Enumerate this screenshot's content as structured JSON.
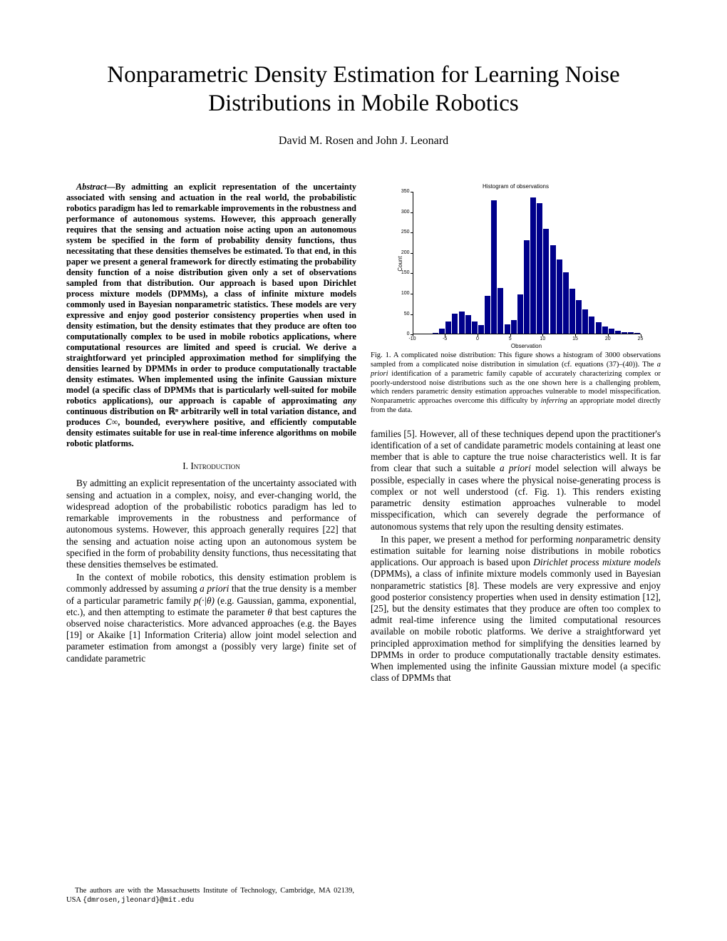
{
  "title": "Nonparametric Density Estimation for Learning Noise Distributions in Mobile Robotics",
  "authors": "David M. Rosen and John J. Leonard",
  "abstract_label": "Abstract",
  "abstract_text": "—By admitting an explicit representation of the uncertainty associated with sensing and actuation in the real world, the probabilistic robotics paradigm has led to remarkable improvements in the robustness and performance of autonomous systems. However, this approach generally requires that the sensing and actuation noise acting upon an autonomous system be specified in the form of probability density functions, thus necessitating that these densities themselves be estimated. To that end, in this paper we present a general framework for directly estimating the probability density function of a noise distribution given only a set of observations sampled from that distribution. Our approach is based upon Dirichlet process mixture models (DPMMs), a class of infinite mixture models commonly used in Bayesian nonparametric statistics. These models are very expressive and enjoy good posterior consistency properties when used in density estimation, but the density estimates that they produce are often too computationally complex to be used in mobile robotics applications, where computational resources are limited and speed is crucial. We derive a straightforward yet principled approximation method for simplifying the densities learned by DPMMs in order to produce computationally tractable density estimates. When implemented using the infinite Gaussian mixture model (a specific class of DPMMs that is particularly well-suited for mobile robotics applications), our approach is capable of approximating ",
  "abstract_text2": " continuous distribution on ℝⁿ arbitrarily well in total variation distance, and produces ",
  "abstract_text2b": ", bounded, everywhere positive, and efficiently computable density estimates suitable for use in real-time inference algorithms on mobile robotic platforms.",
  "abstract_any": "any",
  "abstract_cinf": "C∞",
  "section_intro": "I. Introduction",
  "intro_p1": "By admitting an explicit representation of the uncertainty associated with sensing and actuation in a complex, noisy, and ever-changing world, the widespread adoption of the probabilistic robotics paradigm has led to remarkable improvements in the robustness and performance of autonomous systems. However, this approach generally requires [22] that the sensing and actuation noise acting upon an autonomous system be specified in the form of probability density functions, thus necessitating that these densities themselves be estimated.",
  "intro_p2_a": "In the context of mobile robotics, this density estimation problem is commonly addressed by assuming ",
  "intro_p2_apriori": "a priori",
  "intro_p2_b": " that the true density is a member of a particular parametric family ",
  "intro_p2_math": "p(·|θ)",
  "intro_p2_c": " (e.g. Gaussian, gamma, exponential, etc.), and then attempting to estimate the parameter ",
  "intro_p2_theta": "θ",
  "intro_p2_d": " that best captures the observed noise characteristics. More advanced approaches (e.g. the Bayes [19] or Akaike [1] Information Criteria) allow joint model selection and parameter estimation from amongst a (possibly very large) finite set of candidate parametric",
  "footnote_text_a": "The authors are with the Massachusetts Institute of Technology, Cambridge, MA 02139, USA ",
  "footnote_braces": "{dmrosen,jleonard}@mit.edu",
  "chart": {
    "title": "Histogram of observations",
    "ylabel": "Count",
    "xlabel": "Observation",
    "ylim": [
      0,
      350
    ],
    "xlim": [
      -10,
      25
    ],
    "ytick_step": 50,
    "xtick_step": 5,
    "bar_color": "#00008b",
    "background_color": "#ffffff",
    "bin_width": 1,
    "bins": [
      {
        "x": -7,
        "count": 2
      },
      {
        "x": -6,
        "count": 12
      },
      {
        "x": -5,
        "count": 30
      },
      {
        "x": -4,
        "count": 50
      },
      {
        "x": -3,
        "count": 55
      },
      {
        "x": -2,
        "count": 45
      },
      {
        "x": -1,
        "count": 30
      },
      {
        "x": 0,
        "count": 22
      },
      {
        "x": 1,
        "count": 93
      },
      {
        "x": 2,
        "count": 328
      },
      {
        "x": 3,
        "count": 113
      },
      {
        "x": 4,
        "count": 23
      },
      {
        "x": 5,
        "count": 33
      },
      {
        "x": 6,
        "count": 96
      },
      {
        "x": 7,
        "count": 230
      },
      {
        "x": 8,
        "count": 335
      },
      {
        "x": 9,
        "count": 320
      },
      {
        "x": 10,
        "count": 258
      },
      {
        "x": 11,
        "count": 218
      },
      {
        "x": 12,
        "count": 182
      },
      {
        "x": 13,
        "count": 150
      },
      {
        "x": 14,
        "count": 110
      },
      {
        "x": 15,
        "count": 82
      },
      {
        "x": 16,
        "count": 60
      },
      {
        "x": 17,
        "count": 42
      },
      {
        "x": 18,
        "count": 28
      },
      {
        "x": 19,
        "count": 18
      },
      {
        "x": 20,
        "count": 12
      },
      {
        "x": 21,
        "count": 7
      },
      {
        "x": 22,
        "count": 4
      },
      {
        "x": 23,
        "count": 3
      },
      {
        "x": 24,
        "count": 2
      }
    ]
  },
  "fig_caption_a": "Fig. 1.    A complicated noise distribution: This figure shows a histogram of 3000 observations sampled from a complicated noise distribution in simulation (cf. equations (37)–(40)). The ",
  "fig_caption_apriori": "a priori",
  "fig_caption_b": " identification of a parametric family capable of accurately characterizing complex or poorly-understood noise distributions such as the one shown here is a challenging problem, which renders parametric density estimation approaches vulnerable to model misspecification. Nonparametric approaches overcome this difficulty by ",
  "fig_caption_infer": "inferring",
  "fig_caption_c": " an appropriate model directly from the data.",
  "col2_p1_a": "families [5]. However, all of these techniques depend upon the practitioner's identification of a set of candidate parametric models containing at least one member that is able to capture the true noise characteristics well. It is far from clear that such a suitable ",
  "col2_p1_apriori": "a priori",
  "col2_p1_b": " model selection will always be possible, especially in cases where the physical noise-generating process is complex or not well understood (cf. Fig. 1). This renders existing parametric density estimation approaches vulnerable to model misspecification, which can severely degrade the performance of autonomous systems that rely upon the resulting density estimates.",
  "col2_p2_a": "In this paper, we present a method for performing ",
  "col2_p2_non": "non",
  "col2_p2_b": "parametric density estimation suitable for learning noise distributions in mobile robotics applications. Our approach is based upon ",
  "col2_p2_dpmm": "Dirichlet process mixture models",
  "col2_p2_c": " (DPMMs), a class of infinite mixture models commonly used in Bayesian nonparametric statistics [8]. These models are very expressive and enjoy good posterior consistency properties when used in density estimation [12], [25], but the density estimates that they produce are often too complex to admit real-time inference using the limited computational resources available on mobile robotic platforms. We derive a straightforward yet principled approximation method for simplifying the densities learned by DPMMs in order to produce computationally tractable density estimates. When implemented using the infinite Gaussian mixture model (a specific class of DPMMs that"
}
